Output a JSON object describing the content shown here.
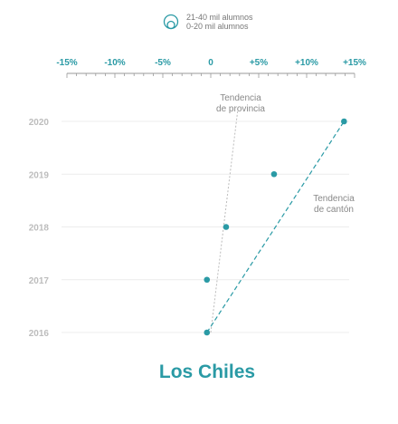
{
  "colors": {
    "accent": "#2a9aa5",
    "year_label": "#bdbdbd",
    "grid": "#ececec",
    "province_trend": "#bbbbbb",
    "axis": "#999999"
  },
  "legend": {
    "icon": "nested-circle-size-icon",
    "entries": [
      "21-40 mil alumnos",
      "0-20 mil alumnos"
    ]
  },
  "chart_data": {
    "type": "scatter",
    "title": "Los Chiles",
    "x_tick_labels": [
      "-15%",
      "-10%",
      "-5%",
      "0",
      "+5%",
      "+10%",
      "+15%"
    ],
    "x_ticks": [
      -15,
      -10,
      -5,
      0,
      5,
      10,
      15
    ],
    "xlim": [
      -15,
      15
    ],
    "y_categories": [
      "2020",
      "2019",
      "2018",
      "2017",
      "2016"
    ],
    "points": [
      {
        "year": "2016",
        "x": -0.4
      },
      {
        "year": "2017",
        "x": -0.4
      },
      {
        "year": "2018",
        "x": 1.6
      },
      {
        "year": "2019",
        "x": 6.6
      },
      {
        "year": "2020",
        "x": 13.9
      }
    ],
    "trends": [
      {
        "label": [
          "Tendencia",
          "de provincia"
        ],
        "from": {
          "year": "2016",
          "x": 0
        },
        "to": {
          "year": "2020",
          "x": 2.8
        }
      },
      {
        "label": [
          "Tendencia",
          "de cantón"
        ],
        "from": {
          "year": "2016",
          "x": -0.4
        },
        "to": {
          "year": "2020",
          "x": 13.9
        }
      }
    ],
    "grid": true
  }
}
